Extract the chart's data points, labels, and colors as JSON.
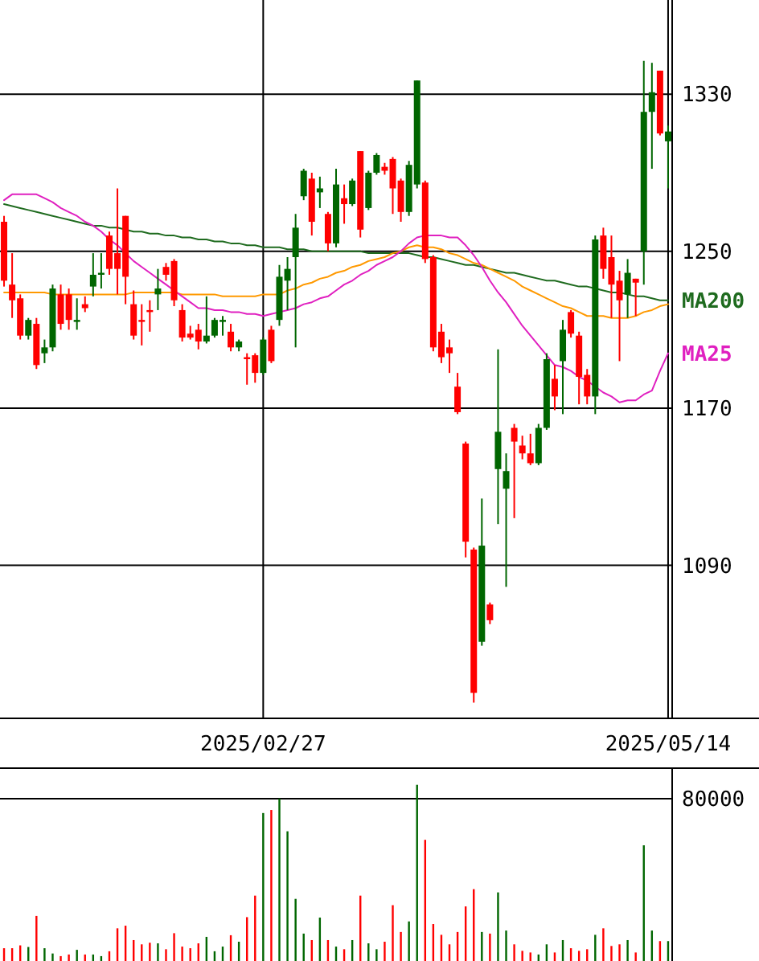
{
  "chart_data": [
    {
      "type": "candlestick",
      "categories": [
        null,
        null,
        null,
        null,
        null,
        null,
        null,
        null,
        null,
        null,
        null,
        null,
        null,
        null,
        null,
        null,
        null,
        null,
        null,
        null,
        null,
        null,
        null,
        null,
        null,
        null,
        null,
        null,
        null,
        null,
        null,
        null,
        "2025/02/27",
        null,
        null,
        null,
        null,
        null,
        null,
        null,
        null,
        null,
        null,
        null,
        null,
        null,
        null,
        null,
        null,
        null,
        null,
        null,
        null,
        null,
        null,
        null,
        null,
        null,
        null,
        null,
        null,
        null,
        null,
        null,
        null,
        null,
        null,
        null,
        null,
        null,
        null,
        null,
        null,
        null,
        null,
        null,
        null,
        null,
        null,
        null,
        null,
        null,
        "2025/05/14"
      ],
      "ohlc": [
        [
          1265,
          1268,
          1232,
          1235
        ],
        [
          1233,
          1249,
          1216,
          1225
        ],
        [
          1226,
          1228,
          1205,
          1207
        ],
        [
          1207,
          1216,
          1205,
          1215
        ],
        [
          1213,
          1216,
          1190,
          1192
        ],
        [
          1198,
          1205,
          1193,
          1201
        ],
        [
          1201,
          1233,
          1199,
          1231
        ],
        [
          1228,
          1233,
          1210,
          1213
        ],
        [
          1228,
          1231,
          1210,
          1215
        ],
        [
          1214,
          1226,
          1210,
          1215
        ],
        [
          1223,
          1227,
          1219,
          1221
        ],
        [
          1232,
          1249,
          1227,
          1238
        ],
        [
          1238,
          1249,
          1231,
          1239
        ],
        [
          1258,
          1260,
          1238,
          1241
        ],
        [
          1249,
          1282,
          1228,
          1241
        ],
        [
          1268,
          1268,
          1223,
          1237
        ],
        [
          1223,
          1230,
          1205,
          1207
        ],
        [
          1215,
          1223,
          1202,
          1214
        ],
        [
          1220,
          1225,
          1209,
          1219
        ],
        [
          1228,
          1241,
          1220,
          1231
        ],
        [
          1242,
          1244,
          1235,
          1238
        ],
        [
          1245,
          1246,
          1222,
          1225
        ],
        [
          1220,
          1223,
          1204,
          1206
        ],
        [
          1208,
          1212,
          1205,
          1206
        ],
        [
          1210,
          1213,
          1200,
          1204
        ],
        [
          1204,
          1227,
          1203,
          1207
        ],
        [
          1207,
          1216,
          1206,
          1215
        ],
        [
          1214,
          1217,
          1207,
          1215
        ],
        [
          1209,
          1213,
          1199,
          1201
        ],
        [
          1201,
          1205,
          1199,
          1204
        ],
        [
          1196,
          1198,
          1182,
          1195
        ],
        [
          1197,
          1198,
          1183,
          1188
        ],
        [
          1188,
          1206,
          1187,
          1205
        ],
        [
          1210,
          1212,
          1193,
          1194
        ],
        [
          1215,
          1243,
          1212,
          1237
        ],
        [
          1235,
          1247,
          1220,
          1241
        ],
        [
          1247,
          1269,
          1201,
          1262
        ],
        [
          1278,
          1292,
          1276,
          1291
        ],
        [
          1287,
          1290,
          1258,
          1265
        ],
        [
          1280,
          1288,
          1272,
          1282
        ],
        [
          1269,
          1270,
          1250,
          1254
        ],
        [
          1254,
          1292,
          1252,
          1284
        ],
        [
          1277,
          1284,
          1264,
          1274
        ],
        [
          1274,
          1287,
          1273,
          1286
        ],
        [
          1301,
          1301,
          1257,
          1261
        ],
        [
          1272,
          1291,
          1271,
          1290
        ],
        [
          1290,
          1300,
          1289,
          1299
        ],
        [
          1293,
          1295,
          1289,
          1291
        ],
        [
          1297,
          1298,
          1269,
          1282
        ],
        [
          1286,
          1287,
          1265,
          1270
        ],
        [
          1270,
          1296,
          1268,
          1294
        ],
        [
          1284,
          1337,
          1282,
          1337
        ],
        [
          1285,
          1286,
          1244,
          1246
        ],
        [
          1247,
          1248,
          1199,
          1201
        ],
        [
          1209,
          1213,
          1193,
          1196
        ],
        [
          1201,
          1205,
          1188,
          1198
        ],
        [
          1181,
          1188,
          1167,
          1168
        ],
        [
          1152,
          1153,
          1094,
          1102
        ],
        [
          1098,
          1099,
          1020,
          1025
        ],
        [
          1051,
          1124,
          1049,
          1100
        ],
        [
          1070,
          1071,
          1060,
          1062
        ],
        [
          1139,
          1200,
          1111,
          1158
        ],
        [
          1129,
          1147,
          1079,
          1138
        ],
        [
          1160,
          1162,
          1114,
          1153
        ],
        [
          1151,
          1156,
          1144,
          1147
        ],
        [
          1147,
          1157,
          1141,
          1142
        ],
        [
          1142,
          1162,
          1141,
          1160
        ],
        [
          1160,
          1198,
          1159,
          1195
        ],
        [
          1185,
          1192,
          1169,
          1176
        ],
        [
          1194,
          1215,
          1167,
          1210
        ],
        [
          1219,
          1220,
          1206,
          1208
        ],
        [
          1207,
          1209,
          1172,
          1186
        ],
        [
          1187,
          1190,
          1172,
          1176
        ],
        [
          1176,
          1258,
          1167,
          1256
        ],
        [
          1258,
          1262,
          1236,
          1241
        ],
        [
          1247,
          1258,
          1216,
          1233
        ],
        [
          1235,
          1240,
          1194,
          1225
        ],
        [
          1228,
          1246,
          1216,
          1239
        ],
        [
          1236,
          1236,
          1217,
          1234
        ],
        [
          1250,
          1347,
          1233,
          1321
        ],
        [
          1321,
          1346,
          1292,
          1331
        ],
        [
          1342,
          1342,
          1309,
          1310
        ],
        [
          1306,
          1314,
          1282,
          1311
        ]
      ],
      "colors": [
        "#ff0000",
        "#ff0000",
        "#ff0000",
        "#006600",
        "#ff0000",
        "#006600",
        "#006600",
        "#ff0000",
        "#ff0000",
        "#006600",
        "#ff0000",
        "#006600",
        "#006600",
        "#ff0000",
        "#ff0000",
        "#ff0000",
        "#ff0000",
        "#ff0000",
        "#ff0000",
        "#006600",
        "#ff0000",
        "#ff0000",
        "#ff0000",
        "#ff0000",
        "#ff0000",
        "#006600",
        "#006600",
        "#006600",
        "#ff0000",
        "#006600",
        "#ff0000",
        "#ff0000",
        "#006600",
        "#ff0000",
        "#006600",
        "#006600",
        "#006600",
        "#006600",
        "#ff0000",
        "#006600",
        "#ff0000",
        "#006600",
        "#ff0000",
        "#006600",
        "#ff0000",
        "#006600",
        "#006600",
        "#ff0000",
        "#ff0000",
        "#ff0000",
        "#006600",
        "#006600",
        "#ff0000",
        "#ff0000",
        "#ff0000",
        "#ff0000",
        "#ff0000",
        "#ff0000",
        "#ff0000",
        "#006600",
        "#ff0000",
        "#006600",
        "#006600",
        "#ff0000",
        "#ff0000",
        "#ff0000",
        "#006600",
        "#006600",
        "#ff0000",
        "#006600",
        "#ff0000",
        "#ff0000",
        "#ff0000",
        "#006600",
        "#ff0000",
        "#ff0000",
        "#ff0000",
        "#006600",
        "#ff0000",
        "#006600",
        "#006600",
        "#ff0000",
        "#006600"
      ],
      "series": [
        {
          "type": "line",
          "name": "MA200",
          "color": "#1f6b1f",
          "values": [
            1274,
            1273,
            1272,
            1271,
            1270,
            1269,
            1268,
            1267,
            1266,
            1265,
            1264,
            1263,
            1263,
            1262,
            1262,
            1261,
            1260,
            1260,
            1259,
            1259,
            1258,
            1258,
            1257,
            1257,
            1256,
            1256,
            1255,
            1255,
            1254,
            1254,
            1253,
            1253,
            1252,
            1252,
            1252,
            1251,
            1251,
            1251,
            1250,
            1250,
            1250,
            1250,
            1250,
            1250,
            1250,
            1249,
            1249,
            1249,
            1249,
            1249,
            1249,
            1248,
            1247,
            1247,
            1246,
            1245,
            1244,
            1243,
            1243,
            1242,
            1241,
            1240,
            1239,
            1239,
            1238,
            1237,
            1236,
            1235,
            1235,
            1234,
            1233,
            1232,
            1232,
            1231,
            1230,
            1229,
            1229,
            1228,
            1227,
            1227,
            1226,
            1225,
            1225
          ]
        },
        {
          "type": "line",
          "color": "#ff9900",
          "values": [
            1229,
            1229,
            1229,
            1229,
            1229,
            1229,
            1228,
            1228,
            1228,
            1228,
            1228,
            1228,
            1228,
            1228,
            1228,
            1228,
            1229,
            1229,
            1229,
            1229,
            1229,
            1229,
            1228,
            1228,
            1228,
            1228,
            1228,
            1227,
            1227,
            1227,
            1227,
            1227,
            1228,
            1228,
            1228,
            1230,
            1231,
            1233,
            1234,
            1236,
            1237,
            1239,
            1240,
            1242,
            1243,
            1245,
            1246,
            1247,
            1249,
            1250,
            1252,
            1253,
            1252,
            1252,
            1251,
            1249,
            1248,
            1246,
            1244,
            1243,
            1241,
            1239,
            1237,
            1235,
            1232,
            1230,
            1228,
            1226,
            1224,
            1222,
            1221,
            1219,
            1217,
            1217,
            1217,
            1216,
            1216,
            1216,
            1217,
            1219,
            1220,
            1222,
            1223
          ]
        },
        {
          "type": "line",
          "name": "MA25",
          "color": "#e020c0",
          "values": [
            1276,
            1279,
            1279,
            1279,
            1279,
            1277,
            1275,
            1272,
            1270,
            1268,
            1265,
            1263,
            1260,
            1256,
            1253,
            1249,
            1245,
            1242,
            1239,
            1236,
            1233,
            1230,
            1227,
            1224,
            1221,
            1221,
            1220,
            1220,
            1219,
            1219,
            1218,
            1218,
            1217,
            1218,
            1219,
            1220,
            1221,
            1223,
            1224,
            1226,
            1227,
            1230,
            1233,
            1235,
            1238,
            1240,
            1243,
            1245,
            1247,
            1250,
            1254,
            1257,
            1258,
            1258,
            1258,
            1257,
            1257,
            1253,
            1248,
            1242,
            1235,
            1229,
            1224,
            1218,
            1212,
            1207,
            1202,
            1197,
            1192,
            1191,
            1189,
            1186,
            1184,
            1181,
            1178,
            1176,
            1173,
            1174,
            1174,
            1177,
            1179,
            1189,
            1198
          ]
        }
      ],
      "ylim": [
        1012,
        1378
      ],
      "yticks": [
        1090,
        1170,
        1250,
        1330
      ],
      "grid": true,
      "legend": "right"
    },
    {
      "type": "bar",
      "categories": [
        null,
        null,
        null,
        null,
        null,
        null,
        null,
        null,
        null,
        null,
        null,
        null,
        null,
        null,
        null,
        null,
        null,
        null,
        null,
        null,
        null,
        null,
        null,
        null,
        null,
        null,
        null,
        null,
        null,
        null,
        null,
        null,
        "2025/02/27",
        null,
        null,
        null,
        null,
        null,
        null,
        null,
        null,
        null,
        null,
        null,
        null,
        null,
        null,
        null,
        null,
        null,
        null,
        null,
        null,
        null,
        null,
        null,
        null,
        null,
        null,
        null,
        null,
        null,
        null,
        null,
        null,
        null,
        null,
        null,
        null,
        null,
        null,
        null,
        null,
        null,
        null,
        null,
        null,
        null,
        null,
        null,
        null,
        null,
        "2025/05/14"
      ],
      "values": [
        6300,
        6300,
        7700,
        6900,
        22200,
        6300,
        3700,
        2400,
        3200,
        5500,
        3200,
        3200,
        2400,
        4800,
        16100,
        17400,
        10300,
        8200,
        9000,
        8700,
        5800,
        13700,
        7100,
        6300,
        8700,
        11900,
        4800,
        7100,
        12700,
        9500,
        21600,
        32200,
        72900,
        74400,
        80000,
        63900,
        30600,
        13500,
        10300,
        21400,
        10300,
        7100,
        5800,
        10300,
        32200,
        8700,
        5800,
        9500,
        27500,
        14300,
        19500,
        86800,
        59700,
        18200,
        12900,
        8200,
        14300,
        26900,
        35400,
        14300,
        13500,
        33800,
        15000,
        8200,
        5000,
        4200,
        3200,
        8200,
        4200,
        10300,
        6300,
        5000,
        5800,
        12900,
        16100,
        7400,
        8200,
        10300,
        4200,
        57000,
        15000,
        9800,
        9800
      ],
      "colors": [
        "#ff0000",
        "#ff0000",
        "#ff0000",
        "#006600",
        "#ff0000",
        "#006600",
        "#006600",
        "#ff0000",
        "#ff0000",
        "#006600",
        "#ff0000",
        "#006600",
        "#006600",
        "#ff0000",
        "#ff0000",
        "#ff0000",
        "#ff0000",
        "#ff0000",
        "#ff0000",
        "#006600",
        "#ff0000",
        "#ff0000",
        "#ff0000",
        "#ff0000",
        "#ff0000",
        "#006600",
        "#006600",
        "#006600",
        "#ff0000",
        "#006600",
        "#ff0000",
        "#ff0000",
        "#006600",
        "#ff0000",
        "#006600",
        "#006600",
        "#006600",
        "#006600",
        "#ff0000",
        "#006600",
        "#ff0000",
        "#006600",
        "#ff0000",
        "#006600",
        "#ff0000",
        "#006600",
        "#006600",
        "#ff0000",
        "#ff0000",
        "#ff0000",
        "#006600",
        "#006600",
        "#ff0000",
        "#ff0000",
        "#ff0000",
        "#ff0000",
        "#ff0000",
        "#ff0000",
        "#ff0000",
        "#006600",
        "#ff0000",
        "#006600",
        "#006600",
        "#ff0000",
        "#ff0000",
        "#ff0000",
        "#006600",
        "#006600",
        "#ff0000",
        "#006600",
        "#ff0000",
        "#ff0000",
        "#ff0000",
        "#006600",
        "#ff0000",
        "#ff0000",
        "#ff0000",
        "#006600",
        "#ff0000",
        "#006600",
        "#006600",
        "#ff0000",
        "#006600"
      ],
      "ylim": [
        0,
        95000
      ],
      "yticks": [
        80000
      ],
      "grid": "y",
      "tick_labels": "y"
    }
  ]
}
